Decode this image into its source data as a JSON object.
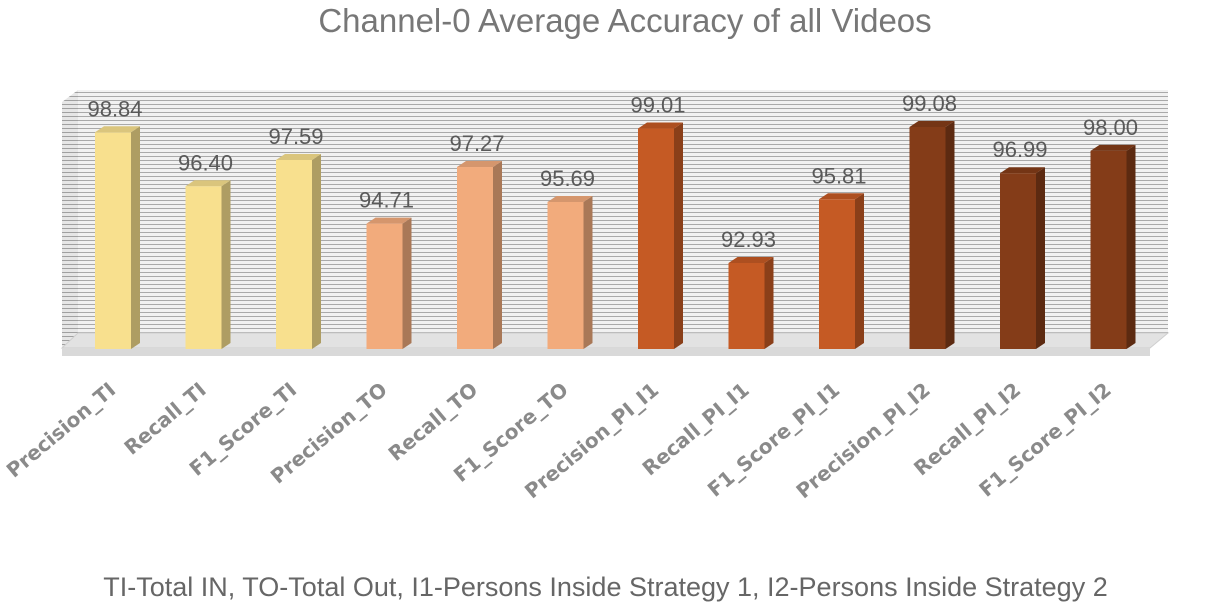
{
  "chart_data": {
    "type": "bar",
    "title": "Channel-0 Average Accuracy of all Videos",
    "categories": [
      "Precision_TI",
      "Recall_TI",
      "F1_Score_TI",
      "Precision_TO",
      "Recall_TO",
      "F1_Score_TO",
      "Precision_PI_I1",
      "Recall_PI_I1",
      "F1_Score_PI_I1",
      "Precision_PI_I2",
      "Recall_PI_I2",
      "F1_Score_PI_I2"
    ],
    "values": [
      98.84,
      96.4,
      97.59,
      94.71,
      97.27,
      95.69,
      99.01,
      92.93,
      95.81,
      99.08,
      96.99,
      98.0
    ],
    "value_labels": [
      "98.84",
      "96.40",
      "97.59",
      "94.71",
      "97.27",
      "95.69",
      "99.01",
      "92.93",
      "95.81",
      "99.08",
      "96.99",
      "98.00"
    ],
    "bar_colors": [
      "#F8E08E",
      "#F8E08E",
      "#F8E08E",
      "#F2AB7C",
      "#F2AB7C",
      "#F2AB7C",
      "#C55A24",
      "#C55A24",
      "#C55A24",
      "#843C18",
      "#843C18",
      "#843C18"
    ],
    "ylim": [
      88,
      100
    ],
    "xlabel": "",
    "ylabel": "",
    "grid": true,
    "style": "3d-column"
  },
  "footnote": "TI-Total IN, TO-Total Out, I1-Persons Inside Strategy 1, I2-Persons Inside Strategy 2"
}
